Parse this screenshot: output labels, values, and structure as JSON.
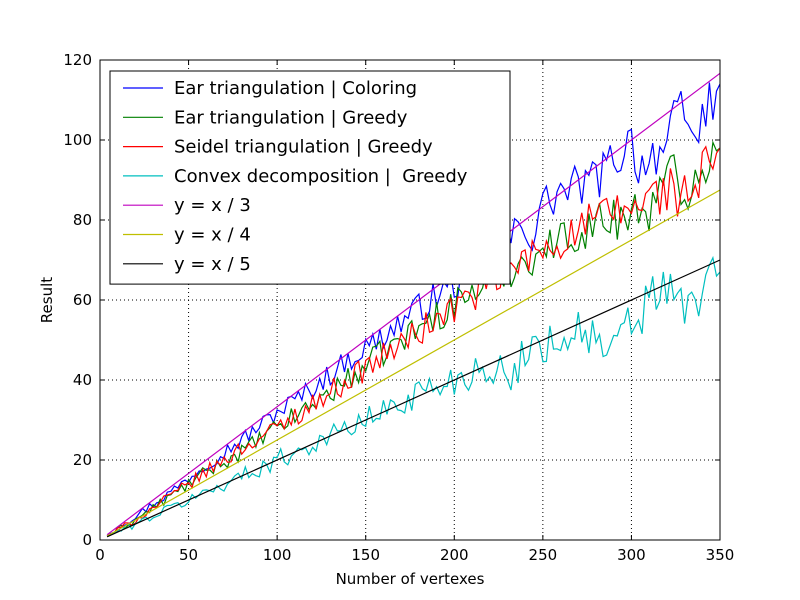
{
  "chart_data": {
    "type": "line",
    "title": "",
    "xlabel": "Number of vertexes",
    "ylabel": "Result",
    "xlim": [
      0,
      350
    ],
    "ylim": [
      0,
      120
    ],
    "xticks": [
      0,
      50,
      100,
      150,
      200,
      250,
      300,
      350
    ],
    "yticks": [
      0,
      20,
      40,
      60,
      80,
      100,
      120
    ],
    "grid": true,
    "legend_position": "top-left",
    "series": [
      {
        "name": "Ear triangulation | Coloring",
        "color": "#0000ff",
        "style": "noisy",
        "x": [
          4,
          20,
          40,
          60,
          80,
          100,
          120,
          140,
          160,
          180,
          200,
          220,
          240,
          245,
          248,
          260,
          280,
          290,
          300,
          305,
          312,
          320,
          325,
          330,
          333,
          350
        ],
        "y": [
          1,
          6,
          12,
          19,
          25,
          32,
          38,
          45,
          51,
          58,
          64,
          71,
          79,
          75,
          83,
          87,
          90,
          95,
          100,
          93,
          97,
          98,
          105,
          107,
          99,
          114
        ]
      },
      {
        "name": "Ear triangulation | Greedy",
        "color": "#008000",
        "style": "noisy",
        "x": [
          4,
          20,
          40,
          60,
          80,
          100,
          120,
          140,
          160,
          180,
          200,
          220,
          240,
          260,
          280,
          300,
          310,
          320,
          325,
          330,
          333,
          350
        ],
        "y": [
          1,
          5,
          11,
          17,
          22,
          28,
          34,
          40,
          47,
          53,
          59,
          65,
          70,
          75,
          79,
          82,
          83,
          89,
          93,
          83,
          92,
          98
        ]
      },
      {
        "name": "Seidel triangulation | Greedy",
        "color": "#ff0000",
        "style": "noisy",
        "x": [
          4,
          20,
          40,
          60,
          80,
          100,
          120,
          140,
          160,
          180,
          200,
          220,
          240,
          260,
          280,
          300,
          310,
          320,
          325,
          330,
          350
        ],
        "y": [
          1,
          5,
          11,
          17,
          23,
          28,
          34,
          40,
          46,
          52,
          58,
          64,
          70,
          75,
          80,
          83,
          85,
          88,
          87,
          85,
          98
        ]
      },
      {
        "name": "Convex decomposition |  Greedy",
        "color": "#00bfbf",
        "style": "noisy",
        "x": [
          4,
          20,
          40,
          60,
          80,
          100,
          120,
          140,
          160,
          180,
          200,
          220,
          232,
          240,
          260,
          270,
          280,
          288,
          300,
          305,
          310,
          320,
          325,
          330,
          350
        ],
        "y": [
          1,
          4,
          8,
          12,
          16,
          20,
          24,
          28,
          32,
          37,
          40,
          44,
          39,
          48,
          50,
          53,
          50,
          45,
          55,
          54,
          62,
          62,
          60,
          57,
          67
        ]
      },
      {
        "name": "y = x / 3",
        "color": "#bf00bf",
        "x": [
          4,
          350
        ],
        "y": [
          1.33,
          116.67
        ]
      },
      {
        "name": "y = x / 4",
        "color": "#bfbf00",
        "x": [
          4,
          350
        ],
        "y": [
          1,
          87.5
        ]
      },
      {
        "name": "y = x / 5",
        "color": "#000000",
        "x": [
          4,
          350
        ],
        "y": [
          0.8,
          70
        ]
      }
    ]
  }
}
